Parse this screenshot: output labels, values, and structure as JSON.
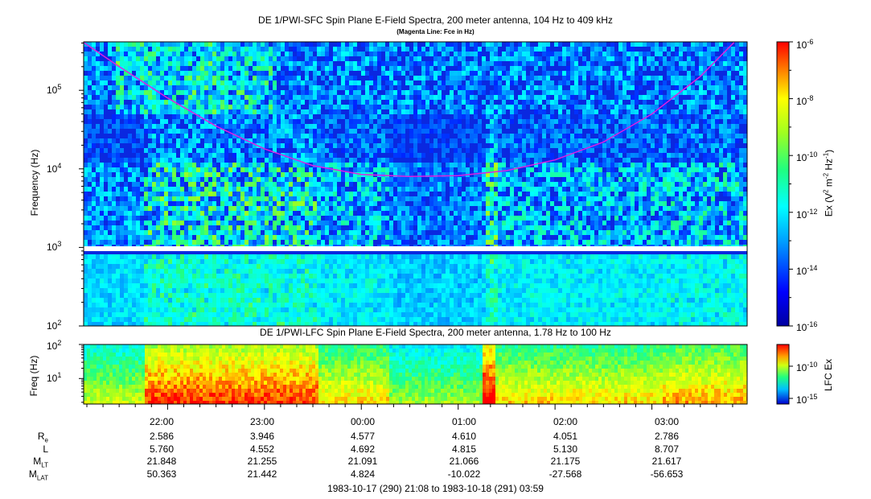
{
  "chart_data": [
    {
      "type": "heatmap",
      "title": "DE 1/PWI-SFC  Spin Plane E-Field Spectra, 200 meter antenna, 104 Hz to 409 kHz",
      "subtitle": "(Magenta Line: Fce in Hz)",
      "ylabel": "Frequency (Hz)",
      "yscale": "log",
      "ylim": [
        100,
        409000
      ],
      "ytick_labels": [
        "10^2",
        "10^3",
        "10^4",
        "10^5"
      ],
      "colorbar_label": "Ex (V^2 m^-2 Hz^-1)",
      "colorbar_scale": "log",
      "colorbar_range": [
        1e-16,
        1e-06
      ],
      "colorbar_tick_labels": [
        "10^-6",
        "10^-8",
        "10^-10",
        "10^-12",
        "10^-14",
        "10^-16"
      ],
      "fce_line": {
        "color": "#e020e0",
        "times_hours_from_2100": [
          0.13,
          0.5,
          1.0,
          1.5,
          2.0,
          2.5,
          3.0,
          3.5,
          4.0,
          4.5,
          5.0,
          5.5,
          6.0,
          6.5,
          6.85
        ],
        "values_hz": [
          409000,
          200000,
          80000,
          35000,
          18000,
          11000,
          8500,
          8000,
          8200,
          9500,
          13000,
          22000,
          50000,
          150000,
          409000
        ]
      }
    },
    {
      "type": "heatmap",
      "title": "DE 1/PWI-LFC  Spin Plane E-Field Spectra, 200 meter antenna, 1.78 Hz to 100 Hz",
      "ylabel": "Freq (Hz)",
      "yscale": "log",
      "ylim": [
        1.78,
        100
      ],
      "ytick_labels": [
        "10^1",
        "10^2"
      ],
      "colorbar_label": "LFC Ex",
      "colorbar_tick_labels": [
        "10^-10",
        "10^-15"
      ]
    }
  ],
  "x_axis": {
    "tick_labels": [
      "22:00",
      "23:00",
      "00:00",
      "01:00",
      "02:00",
      "03:00"
    ],
    "range_label": "1983-10-17 (290) 21:08 to 1983-10-18 (291) 03:59"
  },
  "ephemeris": {
    "rows": [
      {
        "label": "R",
        "sub": "e",
        "values": [
          "2.586",
          "3.946",
          "4.577",
          "4.610",
          "4.051",
          "2.786"
        ]
      },
      {
        "label": "L",
        "sub": "",
        "values": [
          "5.760",
          "4.552",
          "4.692",
          "4.815",
          "5.130",
          "8.707"
        ]
      },
      {
        "label": "M",
        "sub": "LT",
        "values": [
          "21.848",
          "21.255",
          "21.091",
          "21.066",
          "21.175",
          "21.617"
        ]
      },
      {
        "label": "M",
        "sub": "LAT",
        "values": [
          "50.363",
          "21.442",
          "4.824",
          "-10.022",
          "-27.568",
          "-56.653"
        ]
      }
    ]
  }
}
